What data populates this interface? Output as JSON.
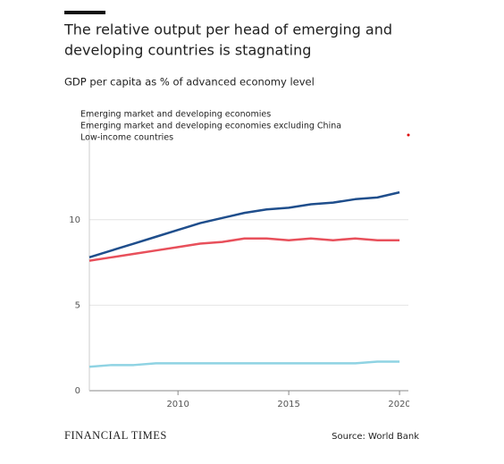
{
  "chart_data": {
    "type": "line",
    "title": "The relative output per head of emerging and developing countries is stagnating",
    "subtitle": "GDP per capita as % of advanced economy level",
    "source": "Source: World Bank",
    "brand": "FINANCIAL TIMES",
    "x": [
      2006,
      2007,
      2008,
      2009,
      2010,
      2011,
      2012,
      2013,
      2014,
      2015,
      2016,
      2017,
      2018,
      2019,
      2020
    ],
    "series": [
      {
        "name": "Emerging market and developing economies",
        "color": "#1f4e8c",
        "values": [
          7.8,
          8.2,
          8.6,
          9.0,
          9.4,
          9.8,
          10.1,
          10.4,
          10.6,
          10.7,
          10.9,
          11.0,
          11.2,
          11.3,
          11.6
        ]
      },
      {
        "name": "Emerging market and developing economies excluding China",
        "color": "#e8505b",
        "values": [
          7.6,
          7.8,
          8.0,
          8.2,
          8.4,
          8.6,
          8.7,
          8.9,
          8.9,
          8.8,
          8.9,
          8.8,
          8.9,
          8.8,
          8.8
        ]
      },
      {
        "name": "Low-income countries",
        "color": "#8fd3e3",
        "values": [
          1.4,
          1.5,
          1.5,
          1.6,
          1.6,
          1.6,
          1.6,
          1.6,
          1.6,
          1.6,
          1.6,
          1.6,
          1.6,
          1.7,
          1.7
        ]
      }
    ],
    "xlim": [
      2006,
      2020.4
    ],
    "ylim": [
      0,
      16
    ],
    "xticks": [
      2010,
      2015,
      2020
    ],
    "yticks": [
      0,
      5,
      10
    ],
    "grid": true
  }
}
